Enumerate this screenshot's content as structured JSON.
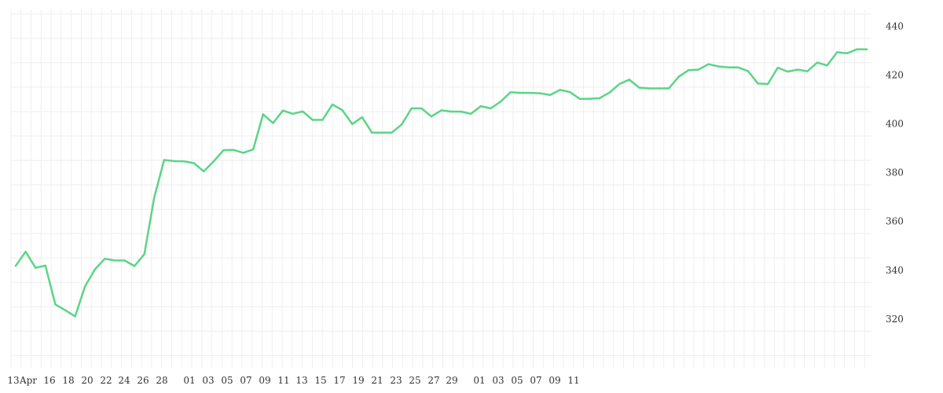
{
  "chart_data": {
    "type": "line",
    "title": "",
    "xlabel": "",
    "ylabel": "",
    "ylim": [
      300,
      445
    ],
    "y_ticks": [
      320,
      340,
      360,
      380,
      400,
      420,
      440
    ],
    "y_axis_side": "right",
    "grid": true,
    "legend": "none",
    "line_color": "#5bd585",
    "grid_color": "#eeeeee",
    "x_start": "2020-04-13",
    "x_end": "2020-06-12",
    "x_tick_labels": [
      {
        "date": "2020-04-13",
        "label": "13"
      },
      {
        "date": "2020-04-14",
        "label": "Apr"
      },
      {
        "date": "2020-04-16",
        "label": "16"
      },
      {
        "date": "2020-04-18",
        "label": "18"
      },
      {
        "date": "2020-04-20",
        "label": "20"
      },
      {
        "date": "2020-04-22",
        "label": "22"
      },
      {
        "date": "2020-04-24",
        "label": "24"
      },
      {
        "date": "2020-04-26",
        "label": "26"
      },
      {
        "date": "2020-04-28",
        "label": "28"
      },
      {
        "date": "2020-05-01",
        "label": "01"
      },
      {
        "date": "2020-05-03",
        "label": "03"
      },
      {
        "date": "2020-05-05",
        "label": "05"
      },
      {
        "date": "2020-05-07",
        "label": "07"
      },
      {
        "date": "2020-05-09",
        "label": "09"
      },
      {
        "date": "2020-05-11",
        "label": "11"
      },
      {
        "date": "2020-05-13",
        "label": "13"
      },
      {
        "date": "2020-05-15",
        "label": "15"
      },
      {
        "date": "2020-05-17",
        "label": "17"
      },
      {
        "date": "2020-05-19",
        "label": "19"
      },
      {
        "date": "2020-05-21",
        "label": "21"
      },
      {
        "date": "2020-05-23",
        "label": "23"
      },
      {
        "date": "2020-05-25",
        "label": "25"
      },
      {
        "date": "2020-05-27",
        "label": "27"
      },
      {
        "date": "2020-05-29",
        "label": "29"
      },
      {
        "date": "2020-06-01",
        "label": "01"
      },
      {
        "date": "2020-06-03",
        "label": "03"
      },
      {
        "date": "2020-06-05",
        "label": "05"
      },
      {
        "date": "2020-06-07",
        "label": "07"
      },
      {
        "date": "2020-06-09",
        "label": "09"
      },
      {
        "date": "2020-06-11",
        "label": "11"
      }
    ],
    "series": [
      {
        "points": [
          [
            "2020-04-12",
            341.8
          ],
          [
            "2020-04-13",
            347.6
          ],
          [
            "2020-04-14",
            341.0
          ],
          [
            "2020-04-15",
            341.9
          ],
          [
            "2020-04-16",
            326.0
          ],
          [
            "2020-04-17",
            323.6
          ],
          [
            "2020-04-22",
            321.1
          ],
          [
            "2020-04-23",
            333.4
          ],
          [
            "2020-04-24",
            340.3
          ],
          [
            "2020-04-25",
            344.7
          ],
          [
            "2020-04-26",
            344.0
          ],
          [
            "2020-04-27",
            344.0
          ],
          [
            "2020-04-28",
            341.7
          ],
          [
            "2020-04-29",
            346.6
          ],
          [
            "2020-04-30",
            369.9
          ],
          [
            "2020-05-02",
            385.2
          ],
          [
            "2020-05-03",
            384.7
          ],
          [
            "2020-05-04",
            384.6
          ],
          [
            "2020-05-05",
            383.9
          ],
          [
            "2020-05-06",
            380.5
          ],
          [
            "2020-05-07",
            384.6
          ],
          [
            "2020-05-08",
            389.2
          ],
          [
            "2020-05-09",
            389.3
          ],
          [
            "2020-05-10",
            388.1
          ],
          [
            "2020-05-11",
            389.5
          ],
          [
            "2020-05-12",
            403.9
          ],
          [
            "2020-05-13",
            400.3
          ],
          [
            "2020-05-14",
            405.4
          ],
          [
            "2020-05-15",
            404.1
          ],
          [
            "2020-05-16",
            405.1
          ],
          [
            "2020-05-17",
            401.6
          ],
          [
            "2020-05-18",
            401.6
          ],
          [
            "2020-05-19",
            407.9
          ],
          [
            "2020-05-20",
            405.6
          ],
          [
            "2020-05-21",
            399.9
          ],
          [
            "2020-05-22",
            402.7
          ],
          [
            "2020-05-23",
            396.4
          ],
          [
            "2020-05-24",
            396.4
          ],
          [
            "2020-05-25",
            396.4
          ],
          [
            "2020-05-26",
            399.7
          ],
          [
            "2020-05-27",
            406.3
          ],
          [
            "2020-05-28",
            406.3
          ],
          [
            "2020-05-29",
            403.0
          ],
          [
            "2020-05-30",
            405.5
          ],
          [
            "2020-05-31",
            405.0
          ],
          [
            "2020-06-01",
            405.0
          ],
          [
            "2020-06-02",
            404.1
          ],
          [
            "2020-06-03",
            407.2
          ],
          [
            "2020-06-04",
            406.3
          ],
          [
            "2020-06-05",
            409.1
          ],
          [
            "2020-06-06",
            412.9
          ],
          [
            "2020-06-07",
            412.7
          ],
          [
            "2020-06-08",
            412.7
          ],
          [
            "2020-06-09",
            412.5
          ],
          [
            "2020-06-10",
            411.8
          ],
          [
            "2020-06-11",
            413.9
          ],
          [
            "2020-06-12",
            413.0
          ],
          [
            "2020-06-13",
            410.2
          ],
          [
            "2020-06-14",
            410.2
          ],
          [
            "2020-06-15",
            410.5
          ],
          [
            "2020-06-16",
            412.8
          ],
          [
            "2020-06-17",
            416.3
          ],
          [
            "2020-06-18",
            418.1
          ],
          [
            "2020-06-19",
            414.8
          ],
          [
            "2020-06-20",
            414.5
          ],
          [
            "2020-06-21",
            414.5
          ],
          [
            "2020-06-22",
            414.5
          ],
          [
            "2020-06-23",
            419.3
          ],
          [
            "2020-06-24",
            422.0
          ],
          [
            "2020-06-25",
            422.2
          ],
          [
            "2020-06-26",
            424.4
          ],
          [
            "2020-06-27",
            423.5
          ],
          [
            "2020-06-28",
            423.1
          ],
          [
            "2020-06-29",
            423.1
          ],
          [
            "2020-06-30",
            421.6
          ],
          [
            "2020-07-01",
            416.5
          ],
          [
            "2020-07-02",
            416.3
          ],
          [
            "2020-07-03",
            423.0
          ],
          [
            "2020-07-04",
            421.4
          ],
          [
            "2020-07-05",
            422.2
          ],
          [
            "2020-07-06",
            421.5
          ],
          [
            "2020-07-07",
            425.1
          ],
          [
            "2020-07-08",
            423.9
          ],
          [
            "2020-07-09",
            429.3
          ],
          [
            "2020-07-10",
            428.9
          ],
          [
            "2020-07-11",
            430.5
          ],
          [
            "2020-07-12",
            430.5
          ]
        ]
      }
    ]
  }
}
